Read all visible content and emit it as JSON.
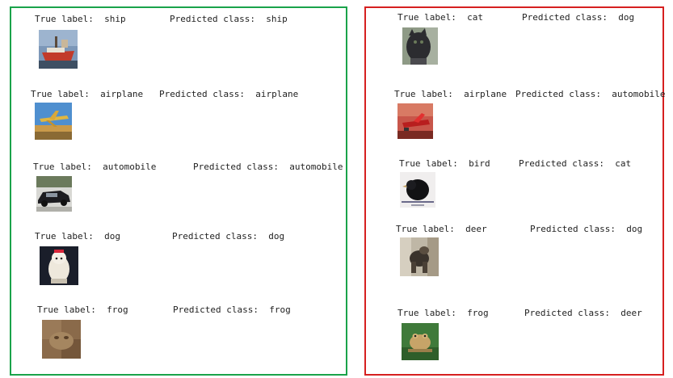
{
  "colors": {
    "correct_border": "#1aa34a",
    "wrong_border": "#d62020"
  },
  "label_prefix": "True label:  ",
  "pred_prefix": "Predicted class:  ",
  "correct": [
    {
      "true_label": "ship",
      "predicted": "ship",
      "image": "ship-thumbnail"
    },
    {
      "true_label": "airplane",
      "predicted": "airplane",
      "image": "airplane-thumbnail"
    },
    {
      "true_label": "automobile",
      "predicted": "automobile",
      "image": "automobile-thumbnail"
    },
    {
      "true_label": "dog",
      "predicted": "dog",
      "image": "dog-thumbnail"
    },
    {
      "true_label": "frog",
      "predicted": "frog",
      "image": "frog-thumbnail"
    }
  ],
  "wrong": [
    {
      "true_label": "cat",
      "predicted": "dog",
      "image": "cat-thumbnail"
    },
    {
      "true_label": "airplane",
      "predicted": "automobile",
      "image": "airplane-thumbnail"
    },
    {
      "true_label": "bird",
      "predicted": "cat",
      "image": "bird-thumbnail"
    },
    {
      "true_label": "deer",
      "predicted": "dog",
      "image": "deer-thumbnail"
    },
    {
      "true_label": "frog",
      "predicted": "deer",
      "image": "frog-thumbnail"
    }
  ]
}
